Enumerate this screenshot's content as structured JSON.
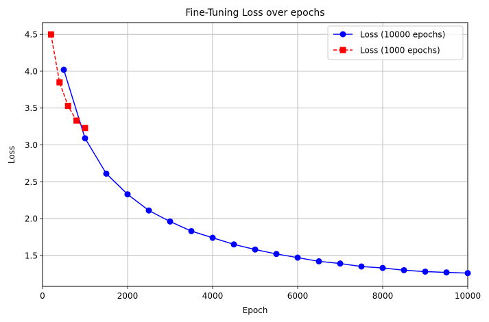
{
  "chart_data": {
    "type": "line",
    "title": "Fine-Tuning Loss over epochs",
    "xlabel": "Epoch",
    "ylabel": "Loss",
    "xlim": [
      0,
      10000
    ],
    "ylim": [
      1.08,
      4.66
    ],
    "x_ticks": [
      0,
      2000,
      4000,
      6000,
      8000,
      10000
    ],
    "x_tick_labels": [
      "0",
      "2000",
      "4000",
      "6000",
      "8000",
      "10000"
    ],
    "y_ticks": [
      1.5,
      2.0,
      2.5,
      3.0,
      3.5,
      4.0,
      4.5
    ],
    "y_tick_labels": [
      "1.5",
      "2.0",
      "2.5",
      "3.0",
      "3.5",
      "4.0",
      "4.5"
    ],
    "grid": true,
    "legend_position": "top-right",
    "series": [
      {
        "name": "Loss (10000 epochs)",
        "color": "#0000ff",
        "line_style": "solid",
        "marker": "circle",
        "x": [
          500,
          1000,
          1500,
          2000,
          2500,
          3000,
          3500,
          4000,
          4500,
          5000,
          5500,
          6000,
          6500,
          7000,
          7500,
          8000,
          8500,
          9000,
          9500,
          10000
        ],
        "y": [
          4.02,
          3.09,
          2.61,
          2.33,
          2.11,
          1.96,
          1.83,
          1.74,
          1.65,
          1.58,
          1.52,
          1.47,
          1.42,
          1.39,
          1.35,
          1.33,
          1.3,
          1.28,
          1.27,
          1.26
        ]
      },
      {
        "name": "Loss (1000 epochs)",
        "color": "#ff0000",
        "line_style": "dashed",
        "marker": "square",
        "x": [
          200,
          400,
          600,
          800,
          1000
        ],
        "y": [
          4.5,
          3.85,
          3.53,
          3.33,
          3.23
        ]
      }
    ]
  }
}
